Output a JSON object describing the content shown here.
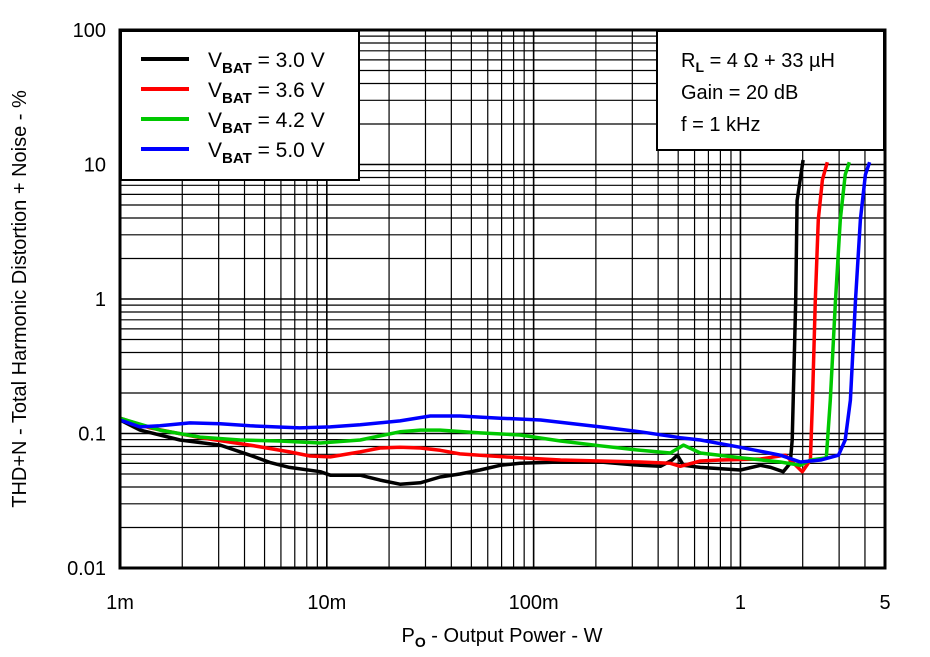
{
  "chart_data": {
    "type": "line",
    "xlabel": {
      "main": "P",
      "sub": "O",
      "rest": " - Output Power - W"
    },
    "ylabel": "THD+N - Total Harmonic Distortion + Noise - %",
    "x_scale": "log",
    "y_scale": "log",
    "xlim": [
      0.001,
      5
    ],
    "ylim": [
      0.01,
      100
    ],
    "grid": true,
    "x_ticks": [
      {
        "value": 0.001,
        "label": "1m"
      },
      {
        "value": 0.01,
        "label": "10m"
      },
      {
        "value": 0.1,
        "label": "100m"
      },
      {
        "value": 1,
        "label": "1"
      },
      {
        "value": 5,
        "label": "5"
      }
    ],
    "y_ticks": [
      {
        "value": 100,
        "label": "100"
      },
      {
        "value": 10,
        "label": "10"
      },
      {
        "value": 1,
        "label": "1"
      },
      {
        "value": 0.1,
        "label": "0.1"
      },
      {
        "value": 0.01,
        "label": "0.01"
      }
    ],
    "legend_position": "top-left",
    "annotation": {
      "line1": {
        "main": "R",
        "sub": "L",
        "rest": " = 4 Ω + 33 µH"
      },
      "line2": "Gain = 20 dB",
      "line3": "f = 1 kHz",
      "position": "top-right"
    },
    "series": [
      {
        "label": {
          "main": "V",
          "sub": "BAT",
          "rest": " = 3.0 V"
        },
        "color": "#000000",
        "x": [
          0.001,
          0.00125,
          0.00195,
          0.00305,
          0.00425,
          0.0053,
          0.0066,
          0.0093,
          0.0104,
          0.0145,
          0.0181,
          0.0226,
          0.0283,
          0.0353,
          0.044,
          0.055,
          0.069,
          0.086,
          0.135,
          0.21,
          0.328,
          0.41,
          0.468,
          0.495,
          0.53,
          0.64,
          1.0,
          1.25,
          1.4,
          1.61,
          1.74,
          1.78,
          1.85,
          1.88,
          2.01
        ],
        "y": [
          0.126,
          0.106,
          0.0895,
          0.082,
          0.069,
          0.061,
          0.056,
          0.052,
          0.049,
          0.049,
          0.045,
          0.042,
          0.043,
          0.0475,
          0.05,
          0.0535,
          0.058,
          0.06,
          0.0614,
          0.0614,
          0.058,
          0.057,
          0.0635,
          0.069,
          0.058,
          0.056,
          0.0535,
          0.058,
          0.056,
          0.052,
          0.06,
          0.0895,
          0.98,
          5.4,
          10.8
        ]
      },
      {
        "label": {
          "main": "V",
          "sub": "BAT",
          "rest": " = 3.6 V"
        },
        "color": "#ff0000",
        "x": [
          0.001,
          0.0014,
          0.00244,
          0.00425,
          0.0066,
          0.0083,
          0.0104,
          0.0145,
          0.0181,
          0.0226,
          0.0283,
          0.0353,
          0.044,
          0.055,
          0.086,
          0.135,
          0.21,
          0.328,
          0.458,
          0.512,
          0.64,
          0.8,
          1.25,
          1.65,
          1.85,
          1.99,
          2.18,
          2.23,
          2.3,
          2.38,
          2.49,
          2.63
        ],
        "y": [
          0.13,
          0.11,
          0.093,
          0.082,
          0.073,
          0.068,
          0.067,
          0.073,
          0.078,
          0.079,
          0.078,
          0.075,
          0.0705,
          0.069,
          0.066,
          0.0635,
          0.0625,
          0.0614,
          0.06,
          0.057,
          0.0625,
          0.0635,
          0.0646,
          0.069,
          0.058,
          0.052,
          0.0635,
          0.177,
          0.98,
          3.9,
          7.7,
          10.4
        ]
      },
      {
        "label": {
          "main": "V",
          "sub": "BAT",
          "rest": " = 4.2 V"
        },
        "color": "#00c800",
        "x": [
          0.001,
          0.00156,
          0.00244,
          0.0038,
          0.0059,
          0.0093,
          0.0145,
          0.0181,
          0.0226,
          0.0283,
          0.0353,
          0.055,
          0.086,
          0.135,
          0.21,
          0.328,
          0.458,
          0.53,
          0.64,
          1.0,
          1.56,
          1.95,
          2.18,
          2.6,
          2.72,
          2.88,
          3.04,
          3.21,
          3.36
        ],
        "y": [
          0.13,
          0.106,
          0.094,
          0.0895,
          0.088,
          0.085,
          0.0895,
          0.096,
          0.103,
          0.106,
          0.106,
          0.101,
          0.0975,
          0.088,
          0.081,
          0.075,
          0.0716,
          0.082,
          0.0716,
          0.066,
          0.0614,
          0.058,
          0.0635,
          0.066,
          0.177,
          0.98,
          3.9,
          8.4,
          10.4
        ]
      },
      {
        "label": {
          "main": "V",
          "sub": "BAT",
          "rest": " = 5.0 V"
        },
        "color": "#0000ff",
        "x": [
          0.001,
          0.00125,
          0.00156,
          0.00218,
          0.00305,
          0.00425,
          0.0074,
          0.0104,
          0.0145,
          0.0226,
          0.0316,
          0.044,
          0.069,
          0.108,
          0.21,
          0.328,
          0.512,
          0.64,
          1.0,
          1.56,
          1.95,
          2.44,
          2.98,
          3.21,
          3.4,
          3.6,
          3.8,
          4.02,
          4.21
        ],
        "y": [
          0.126,
          0.112,
          0.114,
          0.12,
          0.118,
          0.114,
          0.11,
          0.112,
          0.116,
          0.124,
          0.135,
          0.135,
          0.13,
          0.126,
          0.112,
          0.103,
          0.093,
          0.0895,
          0.079,
          0.069,
          0.0614,
          0.0635,
          0.069,
          0.0895,
          0.177,
          0.98,
          3.9,
          8.4,
          10.4
        ]
      }
    ]
  }
}
